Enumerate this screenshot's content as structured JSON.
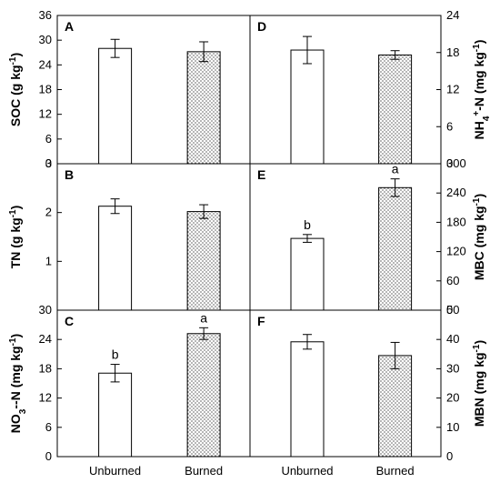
{
  "chart_data": [
    {
      "type": "bar",
      "panel": "A",
      "ylabel": "SOC (g kg-1)",
      "ylabel_parts": [
        {
          "t": "SOC (g kg"
        },
        {
          "t": "-1",
          "sup": true
        },
        {
          "t": ")"
        }
      ],
      "ylim": [
        0,
        36
      ],
      "yticks": [
        0,
        6,
        12,
        18,
        24,
        30,
        36
      ],
      "axis_side": "left",
      "categories": [
        "Unburned",
        "Burned"
      ],
      "values": [
        28.0,
        27.2
      ],
      "errors": [
        2.2,
        2.4
      ],
      "significance": [
        "",
        ""
      ]
    },
    {
      "type": "bar",
      "panel": "B",
      "ylabel": "TN (g kg-1)",
      "ylabel_parts": [
        {
          "t": "TN (g kg"
        },
        {
          "t": "-1",
          "sup": true
        },
        {
          "t": ")"
        }
      ],
      "ylim": [
        0,
        3
      ],
      "yticks": [
        1,
        2,
        3
      ],
      "axis_side": "left",
      "categories": [
        "Unburned",
        "Burned"
      ],
      "values": [
        2.13,
        2.02
      ],
      "errors": [
        0.15,
        0.14
      ],
      "significance": [
        "",
        ""
      ]
    },
    {
      "type": "bar",
      "panel": "C",
      "ylabel": "NO3--N (mg kg-1)",
      "ylabel_parts": [
        {
          "t": "NO"
        },
        {
          "t": "3",
          "sub": true
        },
        {
          "t": "-"
        },
        {
          "t": "-N (mg kg"
        },
        {
          "t": "-1",
          "sup": true
        },
        {
          "t": ")"
        }
      ],
      "ylim": [
        0,
        30
      ],
      "yticks": [
        0,
        6,
        12,
        18,
        24,
        30
      ],
      "axis_side": "left",
      "categories": [
        "Unburned",
        "Burned"
      ],
      "values": [
        17.1,
        25.2
      ],
      "errors": [
        1.8,
        1.2
      ],
      "significance": [
        "b",
        "a"
      ]
    },
    {
      "type": "bar",
      "panel": "D",
      "ylabel": "NH4+-N (mg kg-1)",
      "ylabel_parts": [
        {
          "t": "NH"
        },
        {
          "t": "4",
          "sub": true
        },
        {
          "t": "+",
          "sup": true
        },
        {
          "t": "-N (mg kg"
        },
        {
          "t": "-1",
          "sup": true
        },
        {
          "t": ")"
        }
      ],
      "ylim": [
        0,
        24
      ],
      "yticks": [
        0,
        6,
        12,
        18,
        24
      ],
      "axis_side": "right",
      "categories": [
        "Unburned",
        "Burned"
      ],
      "values": [
        18.4,
        17.6
      ],
      "errors": [
        2.2,
        0.7
      ],
      "significance": [
        "",
        ""
      ]
    },
    {
      "type": "bar",
      "panel": "E",
      "ylabel": "MBC (mg kg-1)",
      "ylabel_parts": [
        {
          "t": "MBC (mg kg"
        },
        {
          "t": "-1",
          "sup": true
        },
        {
          "t": ")"
        }
      ],
      "ylim": [
        0,
        300
      ],
      "yticks": [
        0,
        60,
        120,
        180,
        240,
        300
      ],
      "axis_side": "right",
      "categories": [
        "Unburned",
        "Burned"
      ],
      "values": [
        147,
        251
      ],
      "errors": [
        8,
        18
      ],
      "significance": [
        "b",
        "a"
      ]
    },
    {
      "type": "bar",
      "panel": "F",
      "ylabel": "MBN (mg kg-1)",
      "ylabel_parts": [
        {
          "t": "MBN (mg kg"
        },
        {
          "t": "-1",
          "sup": true
        },
        {
          "t": ")"
        }
      ],
      "ylim": [
        0,
        50
      ],
      "yticks": [
        0,
        10,
        20,
        30,
        40,
        50
      ],
      "axis_side": "right",
      "categories": [
        "Unburned",
        "Burned"
      ],
      "values": [
        39.2,
        34.5
      ],
      "errors": [
        2.5,
        4.5
      ],
      "significance": [
        "",
        ""
      ]
    }
  ],
  "legend": {
    "bar_styles": [
      "white",
      "dotted"
    ]
  },
  "colors": {
    "bar_edge": "#000000",
    "dot": "#000000",
    "background": "#ffffff"
  }
}
